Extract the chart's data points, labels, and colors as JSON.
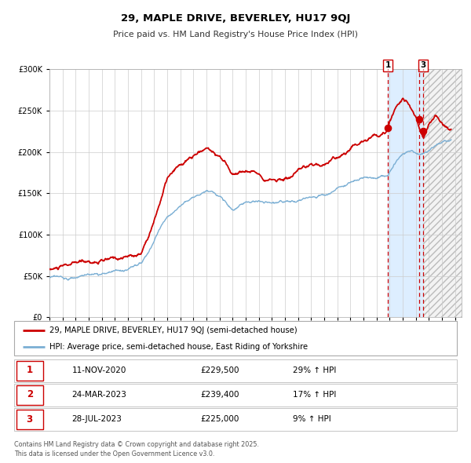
{
  "title": "29, MAPLE DRIVE, BEVERLEY, HU17 9QJ",
  "subtitle": "Price paid vs. HM Land Registry's House Price Index (HPI)",
  "legend_line1": "29, MAPLE DRIVE, BEVERLEY, HU17 9QJ (semi-detached house)",
  "legend_line2": "HPI: Average price, semi-detached house, East Riding of Yorkshire",
  "table_rows": [
    {
      "num": "1",
      "date": "11-NOV-2020",
      "price": "£229,500",
      "hpi": "29% ↑ HPI"
    },
    {
      "num": "2",
      "date": "24-MAR-2023",
      "price": "£239,400",
      "hpi": "17% ↑ HPI"
    },
    {
      "num": "3",
      "date": "28-JUL-2023",
      "price": "£225,000",
      "hpi": "9% ↑ HPI"
    }
  ],
  "footer": "Contains HM Land Registry data © Crown copyright and database right 2025.\nThis data is licensed under the Open Government Licence v3.0.",
  "red_color": "#cc0000",
  "blue_color": "#7bafd4",
  "shade_color": "#ddeeff",
  "ylim": [
    0,
    300000
  ],
  "yticks": [
    0,
    50000,
    100000,
    150000,
    200000,
    250000,
    300000
  ],
  "xlim_start": 1995.0,
  "xlim_end": 2026.5,
  "sale1_x": 2020.87,
  "sale1_y": 229500,
  "sale2_x": 2023.24,
  "sale2_y": 239400,
  "sale3_x": 2023.57,
  "sale3_y": 225000,
  "shade_start": 2020.87,
  "shade_end": 2023.57,
  "hatch_start": 2023.57,
  "hatch_end": 2026.5
}
